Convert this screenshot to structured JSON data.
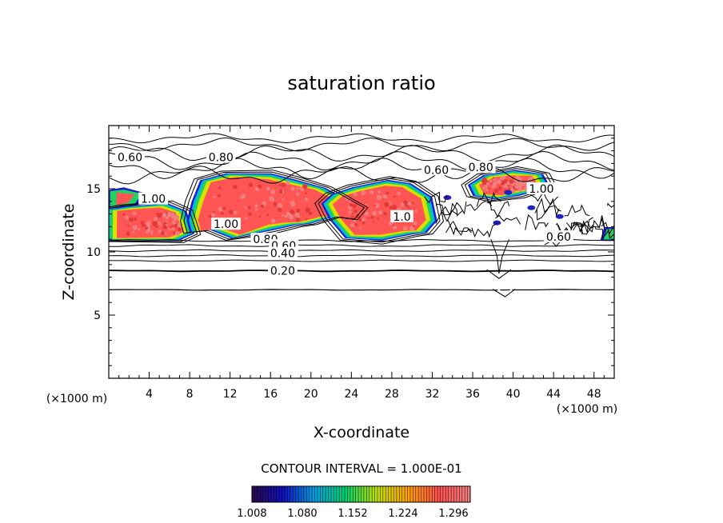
{
  "chart_data": {
    "type": "heatmap",
    "title": "saturation ratio",
    "xlabel": "X-coordinate",
    "ylabel": "Z-coordinate",
    "x_unit": "(×1000 m)",
    "y_unit": "(×1000 m)",
    "xlim": [
      0,
      50
    ],
    "ylim": [
      0,
      20
    ],
    "x_ticks": [
      4,
      8,
      12,
      16,
      20,
      24,
      28,
      32,
      36,
      40,
      44,
      48
    ],
    "y_ticks": [
      5,
      10,
      15
    ],
    "contour_interval_label": "CONTOUR INTERVAL = 1.000E-01",
    "colorbar": {
      "min": 1.008,
      "max": 1.32,
      "tick_values": [
        1.008,
        1.08,
        1.152,
        1.224,
        1.296
      ],
      "tick_labels": [
        "1.008",
        "1.080",
        "1.152",
        "1.224",
        "1.296"
      ],
      "colors": [
        "#2a0a4a",
        "#1010c0",
        "#00a0e0",
        "#00d070",
        "#c0e000",
        "#ffa000",
        "#ff5050",
        "#f08080"
      ]
    },
    "contour_labels": [
      {
        "text": "0.60",
        "x": 2.1,
        "z": 17.5
      },
      {
        "text": "0.80",
        "x": 11.1,
        "z": 17.5
      },
      {
        "text": "1.00",
        "x": 4.4,
        "z": 14.2
      },
      {
        "text": "1.00",
        "x": 11.6,
        "z": 12.2
      },
      {
        "text": "0.80",
        "x": 15.5,
        "z": 11.0
      },
      {
        "text": "0.60",
        "x": 17.3,
        "z": 10.5
      },
      {
        "text": "0.40",
        "x": 17.2,
        "z": 9.9
      },
      {
        "text": "0.20",
        "x": 17.2,
        "z": 8.5
      },
      {
        "text": "0.60",
        "x": 32.4,
        "z": 16.5
      },
      {
        "text": "0.80",
        "x": 36.8,
        "z": 16.7
      },
      {
        "text": "1.00",
        "x": 42.8,
        "z": 15.0
      },
      {
        "text": "0.60",
        "x": 44.5,
        "z": 11.2
      },
      {
        "text": "1.0",
        "x": 29.0,
        "z": 12.8
      }
    ],
    "grid": false,
    "legend": "none"
  }
}
